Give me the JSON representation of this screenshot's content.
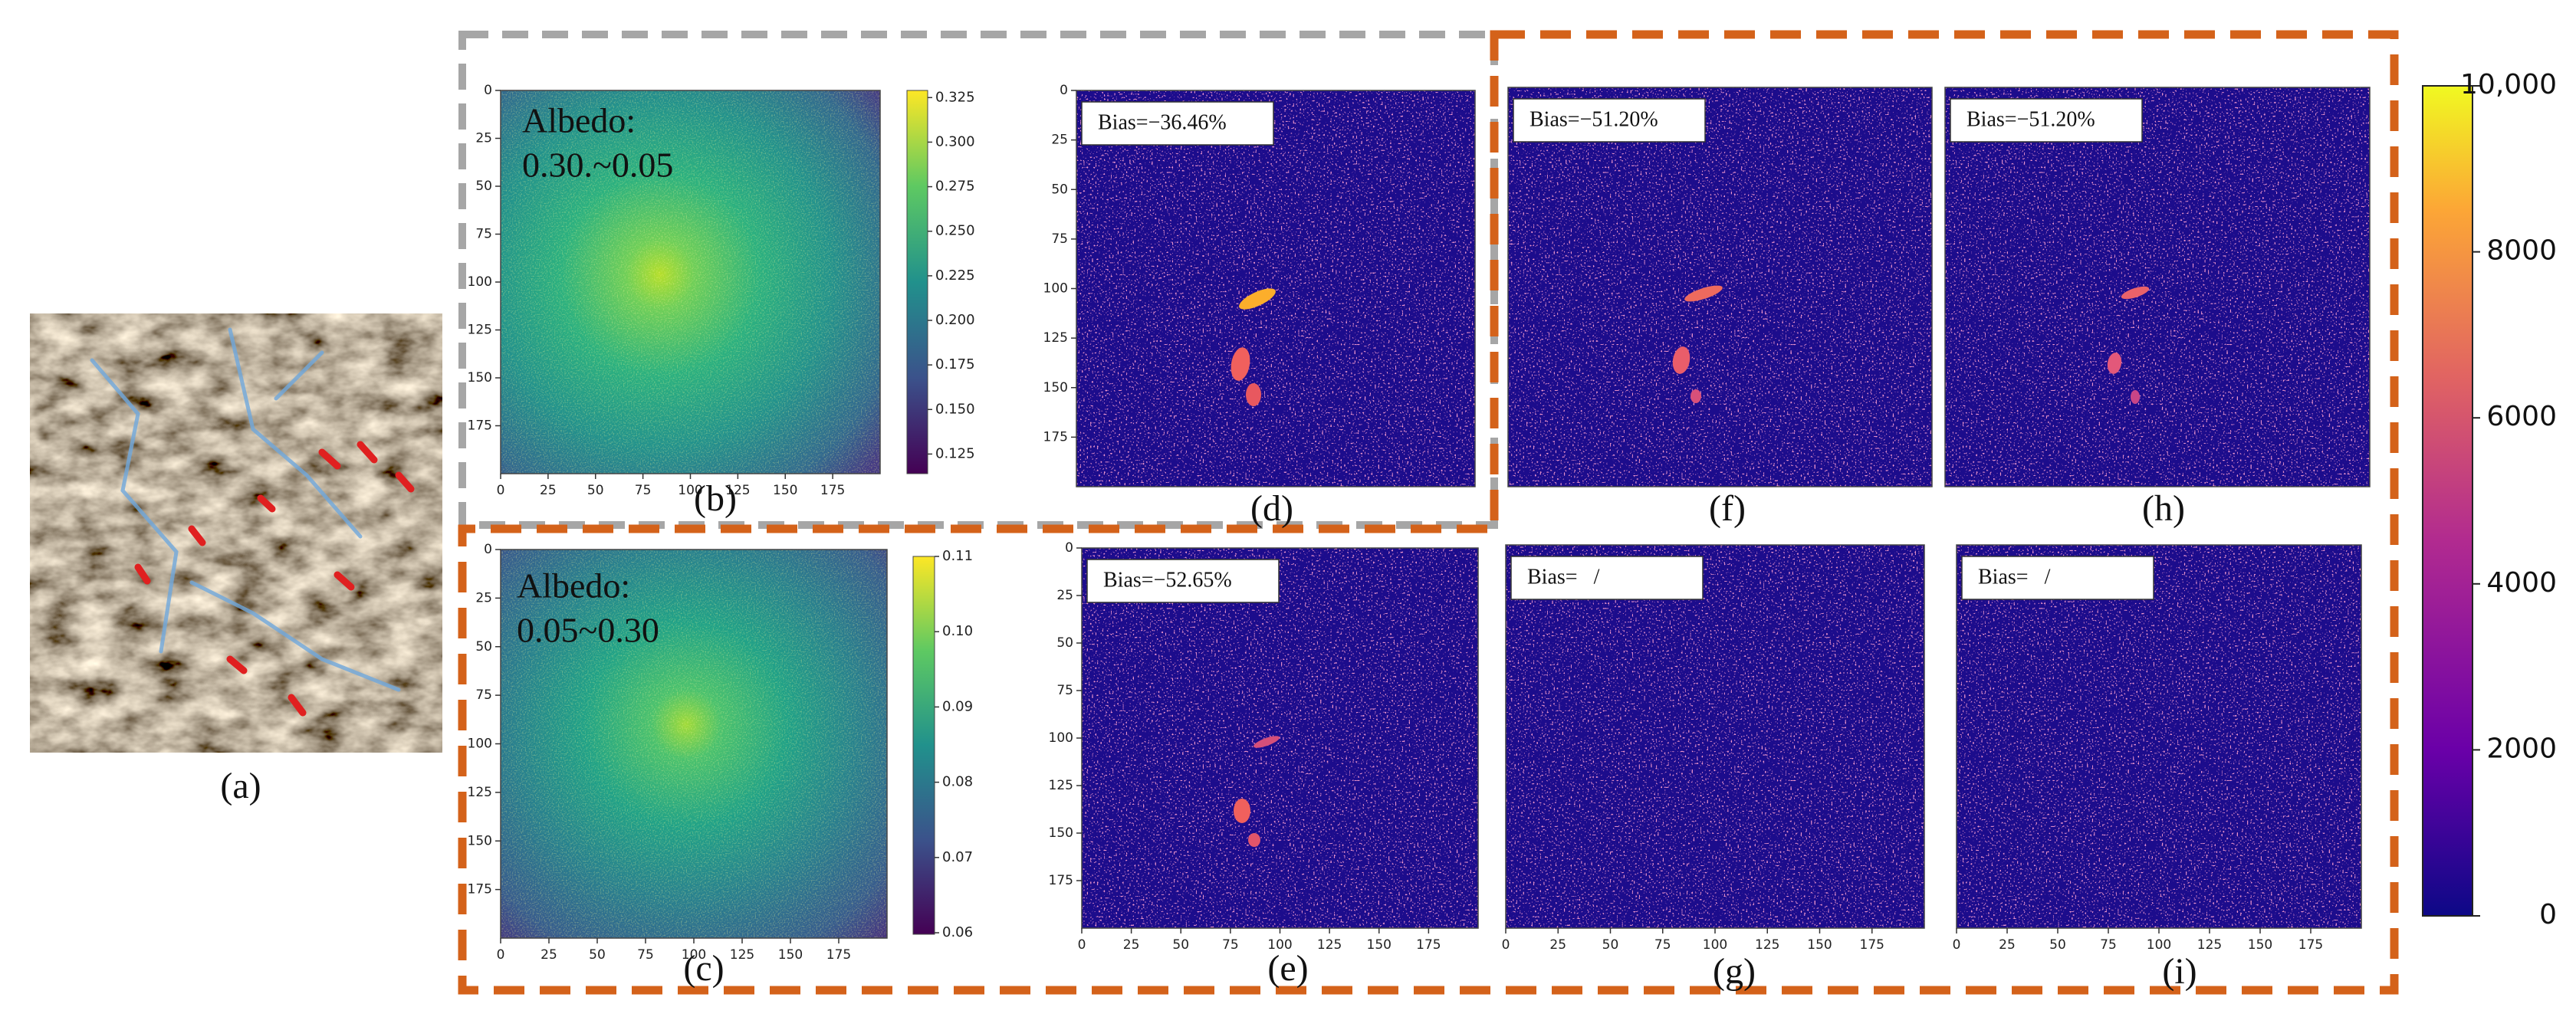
{
  "panels": {
    "a": {
      "label": "(a)"
    },
    "b": {
      "label": "(b)",
      "annotation": [
        "Albedo:",
        "0.30.~0.05"
      ],
      "xlim": [
        0,
        200
      ],
      "ylim": [
        0,
        200
      ],
      "xticks": [
        0,
        25,
        50,
        75,
        100,
        125,
        150,
        175
      ],
      "yticks": [
        0,
        25,
        50,
        75,
        100,
        125,
        150,
        175
      ],
      "colorbar": {
        "lim": [
          0.114,
          0.329
        ],
        "ticks": [
          0.325,
          {
            "value": 0.3,
            "label": "0.300"
          },
          0.275,
          {
            "value": 0.25,
            "label": "0.250"
          },
          0.225,
          {
            "value": 0.2,
            "label": "0.200"
          },
          0.175,
          {
            "value": 0.15,
            "label": "0.150"
          },
          0.125
        ]
      }
    },
    "c": {
      "label": "(c)",
      "annotation": [
        "Albedo:",
        "0.05~0.30"
      ],
      "xlim": [
        0,
        200
      ],
      "ylim": [
        0,
        200
      ],
      "xticks": [
        0,
        25,
        50,
        75,
        100,
        125,
        150,
        175
      ],
      "yticks": [
        0,
        25,
        50,
        75,
        100,
        125,
        150,
        175
      ],
      "colorbar": {
        "lim": [
          0.0598,
          0.11
        ],
        "ticks": [
          0.11,
          {
            "value": 0.1,
            "label": "0.10"
          },
          0.09,
          0.08,
          0.07,
          0.06
        ]
      }
    },
    "d": {
      "label": "(d)",
      "bias": "Bias=−36.46%",
      "ylim": [
        0,
        200
      ],
      "yticks": [
        0,
        25,
        50,
        75,
        100,
        125,
        150,
        175
      ]
    },
    "e": {
      "label": "(e)",
      "bias": "Bias=−52.65%",
      "xlim": [
        0,
        200
      ],
      "ylim": [
        0,
        200
      ],
      "xticks": [
        0,
        25,
        50,
        75,
        100,
        125,
        150,
        175
      ],
      "yticks": [
        0,
        25,
        50,
        75,
        100,
        125,
        150,
        175
      ]
    },
    "f": {
      "label": "(f)",
      "bias": "Bias=−51.20%"
    },
    "g": {
      "label": "(g)",
      "bias": "Bias=   /",
      "xlim": [
        0,
        200
      ],
      "xticks": [
        0,
        25,
        50,
        75,
        100,
        125,
        150,
        175
      ]
    },
    "h": {
      "label": "(h)",
      "bias": "Bias=−51.20%"
    },
    "i": {
      "label": "(i)",
      "bias": "Bias=   /",
      "xlim": [
        0,
        200
      ],
      "xticks": [
        0,
        25,
        50,
        75,
        100,
        125,
        150,
        175
      ]
    }
  },
  "colorbar": {
    "lim": [
      0,
      10000
    ],
    "ticks": [
      0,
      2000,
      4000,
      6000,
      8000,
      {
        "value": 10000,
        "label": "10,000"
      }
    ]
  }
}
